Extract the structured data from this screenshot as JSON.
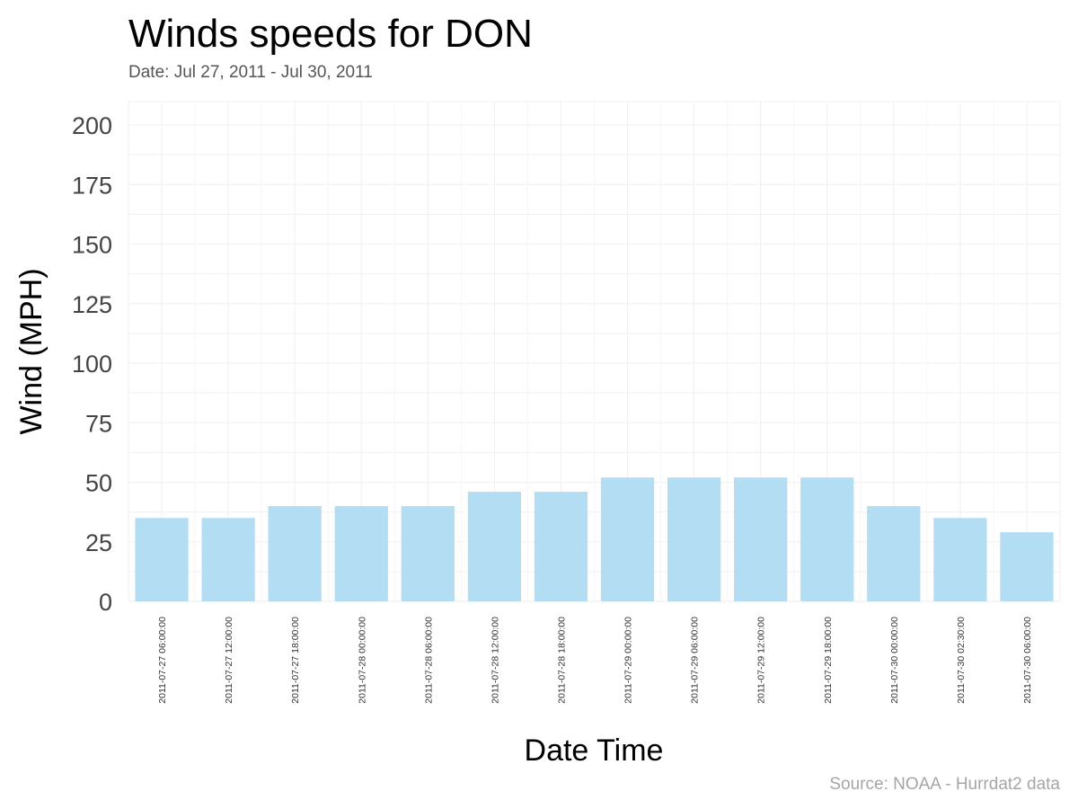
{
  "chart_data": {
    "type": "bar",
    "title": "Winds speeds for DON",
    "subtitle": "Date:  Jul 27, 2011 - Jul 30, 2011",
    "caption": "Source: NOAA - Hurrdat2 data",
    "xlabel": "Date Time",
    "ylabel": "Wind (MPH)",
    "ylim": [
      0,
      200
    ],
    "yticks": [
      "0",
      "25",
      "50",
      "75",
      "100",
      "125",
      "150",
      "175",
      "200"
    ],
    "grid": true,
    "categories": [
      "2011-07-27 06:00:00",
      "2011-07-27 12:00:00",
      "2011-07-27 18:00:00",
      "2011-07-28 00:00:00",
      "2011-07-28 06:00:00",
      "2011-07-28 12:00:00",
      "2011-07-28 18:00:00",
      "2011-07-29 00:00:00",
      "2011-07-29 06:00:00",
      "2011-07-29 12:00:00",
      "2011-07-29 18:00:00",
      "2011-07-30 00:00:00",
      "2011-07-30 02:30:00",
      "2011-07-30 06:00:00"
    ],
    "values": [
      35,
      35,
      40,
      40,
      40,
      46,
      46,
      52,
      52,
      52,
      52,
      40,
      35,
      29
    ],
    "bar_color": "#b3ddf2"
  }
}
